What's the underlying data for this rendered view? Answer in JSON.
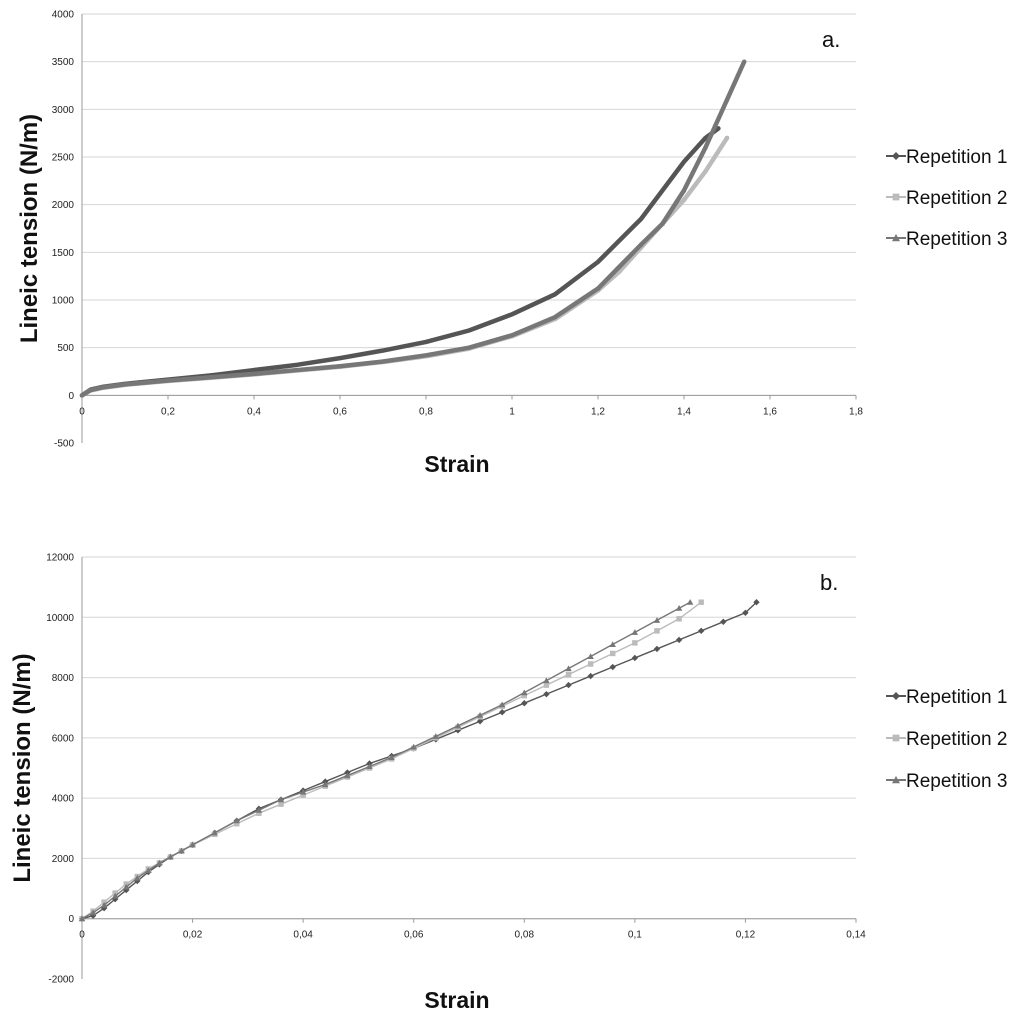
{
  "chart_data": [
    {
      "type": "line",
      "panel_label": "a.",
      "xlabel": "Strain",
      "ylabel": "Lineic tension (N/m)",
      "xlim": [
        0,
        1.8
      ],
      "ylim": [
        -500,
        4000
      ],
      "x_ticks": [
        "0",
        "0,2",
        "0,4",
        "0,6",
        "0,8",
        "1",
        "1,2",
        "1,4",
        "1,6",
        "1,8"
      ],
      "y_ticks": [
        "-500",
        "0",
        "500",
        "1000",
        "1500",
        "2000",
        "2500",
        "3000",
        "3500",
        "4000"
      ],
      "grid": "horizontal",
      "legend_position": "right",
      "series": [
        {
          "name": "Repetition 1",
          "color": "#555555",
          "marker": "diamond",
          "x": [
            0,
            0.02,
            0.05,
            0.1,
            0.2,
            0.3,
            0.4,
            0.5,
            0.6,
            0.7,
            0.8,
            0.9,
            1.0,
            1.1,
            1.2,
            1.3,
            1.35,
            1.4,
            1.45,
            1.48
          ],
          "y": [
            0,
            60,
            90,
            120,
            165,
            210,
            265,
            320,
            390,
            470,
            560,
            680,
            850,
            1060,
            1400,
            1850,
            2150,
            2450,
            2700,
            2800
          ]
        },
        {
          "name": "Repetition 2",
          "color": "#bbbbbb",
          "marker": "square",
          "x": [
            0,
            0.02,
            0.05,
            0.1,
            0.2,
            0.3,
            0.4,
            0.5,
            0.6,
            0.7,
            0.8,
            0.9,
            1.0,
            1.1,
            1.2,
            1.25,
            1.3,
            1.35,
            1.4,
            1.45,
            1.5
          ],
          "y": [
            0,
            50,
            80,
            110,
            150,
            185,
            220,
            260,
            300,
            350,
            410,
            490,
            620,
            800,
            1100,
            1300,
            1550,
            1800,
            2050,
            2350,
            2700
          ]
        },
        {
          "name": "Repetition 3",
          "color": "#777777",
          "marker": "triangle",
          "x": [
            0,
            0.02,
            0.05,
            0.1,
            0.2,
            0.3,
            0.4,
            0.5,
            0.6,
            0.7,
            0.8,
            0.9,
            1.0,
            1.1,
            1.2,
            1.25,
            1.3,
            1.35,
            1.4,
            1.45,
            1.5,
            1.54
          ],
          "y": [
            0,
            55,
            85,
            115,
            155,
            190,
            225,
            265,
            305,
            355,
            420,
            500,
            630,
            820,
            1120,
            1350,
            1580,
            1800,
            2150,
            2600,
            3100,
            3500
          ]
        }
      ]
    },
    {
      "type": "line",
      "panel_label": "b.",
      "xlabel": "Strain",
      "ylabel": "Lineic tension (N/m)",
      "xlim": [
        0,
        0.14
      ],
      "ylim": [
        -2000,
        12000
      ],
      "x_ticks": [
        "0",
        "0,02",
        "0,04",
        "0,06",
        "0,08",
        "0,1",
        "0,12",
        "0,14"
      ],
      "y_ticks": [
        "-2000",
        "0",
        "2000",
        "4000",
        "6000",
        "8000",
        "10000",
        "12000"
      ],
      "grid": "horizontal",
      "legend_position": "right",
      "series": [
        {
          "name": "Repetition 1",
          "color": "#555555",
          "marker": "diamond",
          "x": [
            0,
            0.002,
            0.004,
            0.006,
            0.008,
            0.01,
            0.012,
            0.014,
            0.016,
            0.018,
            0.02,
            0.024,
            0.028,
            0.032,
            0.036,
            0.04,
            0.044,
            0.048,
            0.052,
            0.056,
            0.06,
            0.064,
            0.068,
            0.072,
            0.076,
            0.08,
            0.084,
            0.088,
            0.092,
            0.096,
            0.1,
            0.104,
            0.108,
            0.112,
            0.116,
            0.12,
            0.122
          ],
          "y": [
            0,
            100,
            350,
            650,
            950,
            1250,
            1550,
            1800,
            2050,
            2250,
            2450,
            2850,
            3250,
            3650,
            3950,
            4250,
            4550,
            4850,
            5150,
            5400,
            5650,
            5950,
            6250,
            6550,
            6850,
            7150,
            7450,
            7750,
            8050,
            8350,
            8650,
            8950,
            9250,
            9550,
            9850,
            10150,
            10500
          ]
        },
        {
          "name": "Repetition 2",
          "color": "#bbbbbb",
          "marker": "square",
          "x": [
            0,
            0.002,
            0.004,
            0.006,
            0.008,
            0.01,
            0.012,
            0.014,
            0.016,
            0.018,
            0.02,
            0.024,
            0.028,
            0.032,
            0.036,
            0.04,
            0.044,
            0.048,
            0.052,
            0.056,
            0.06,
            0.064,
            0.068,
            0.072,
            0.076,
            0.08,
            0.084,
            0.088,
            0.092,
            0.096,
            0.1,
            0.104,
            0.108,
            0.112
          ],
          "y": [
            0,
            250,
            550,
            850,
            1150,
            1400,
            1650,
            1850,
            2050,
            2250,
            2450,
            2800,
            3150,
            3500,
            3800,
            4100,
            4400,
            4700,
            5000,
            5300,
            5650,
            6000,
            6350,
            6700,
            7050,
            7400,
            7750,
            8100,
            8450,
            8800,
            9150,
            9550,
            9950,
            10500
          ]
        },
        {
          "name": "Repetition 3",
          "color": "#777777",
          "marker": "triangle",
          "x": [
            0,
            0.002,
            0.004,
            0.006,
            0.008,
            0.01,
            0.012,
            0.014,
            0.016,
            0.018,
            0.02,
            0.024,
            0.028,
            0.032,
            0.036,
            0.04,
            0.044,
            0.048,
            0.052,
            0.056,
            0.06,
            0.064,
            0.068,
            0.072,
            0.076,
            0.08,
            0.084,
            0.088,
            0.092,
            0.096,
            0.1,
            0.104,
            0.108,
            0.11
          ],
          "y": [
            0,
            200,
            450,
            750,
            1050,
            1350,
            1600,
            1850,
            2050,
            2250,
            2450,
            2850,
            3250,
            3600,
            3950,
            4200,
            4450,
            4750,
            5050,
            5350,
            5700,
            6050,
            6400,
            6750,
            7100,
            7500,
            7900,
            8300,
            8700,
            9100,
            9500,
            9900,
            10300,
            10500
          ]
        }
      ]
    }
  ]
}
